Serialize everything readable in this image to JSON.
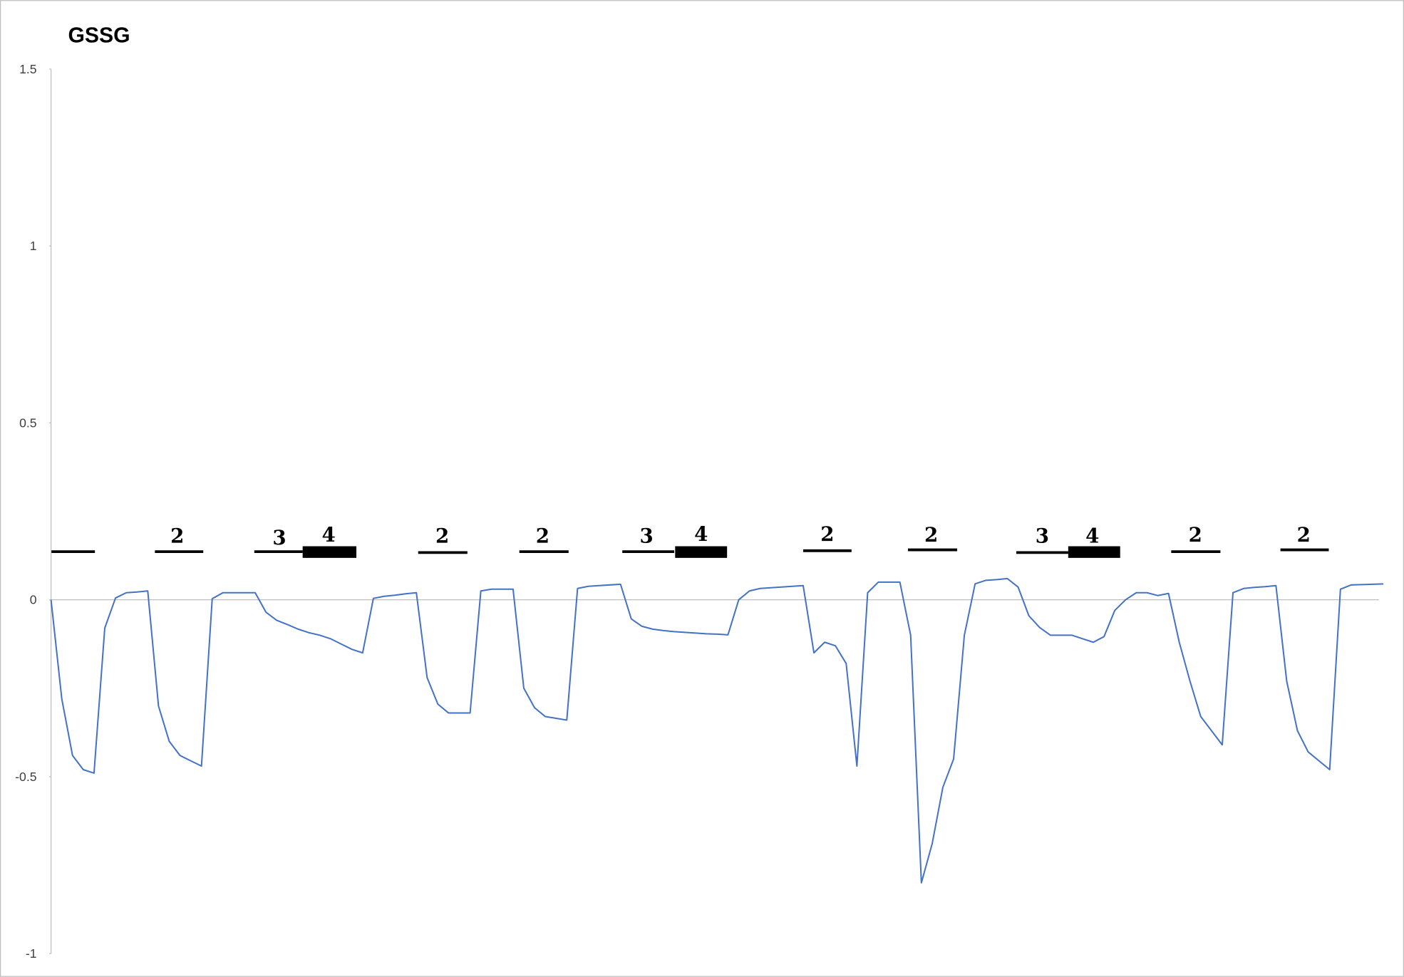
{
  "chart_data": {
    "type": "line",
    "title": "GSSG",
    "ylim": [
      -1,
      1.5
    ],
    "yticks": [
      -1,
      -0.5,
      0,
      0.5,
      1,
      1.5
    ],
    "grid": false,
    "series": [
      {
        "color": "#4472c4",
        "values": [
          0,
          -0.28,
          -0.44,
          -0.48,
          -0.49,
          -0.08,
          0.005,
          0.02,
          0.022,
          0.025,
          -0.3,
          -0.4,
          -0.44,
          -0.455,
          -0.47,
          0.003,
          0.02,
          0.02,
          0.02,
          0.02,
          -0.035,
          -0.058,
          -0.07,
          -0.083,
          -0.093,
          -0.1,
          -0.11,
          -0.125,
          -0.14,
          -0.15,
          0.004,
          0.01,
          0.013,
          0.017,
          0.02,
          -0.22,
          -0.295,
          -0.32,
          -0.32,
          -0.32,
          0.025,
          0.03,
          0.03,
          0.03,
          -0.25,
          -0.305,
          -0.33,
          -0.335,
          -0.34,
          0.032,
          0.038,
          0.04,
          0.042,
          0.044,
          -0.054,
          -0.075,
          -0.083,
          -0.087,
          -0.09,
          -0.092,
          -0.094,
          -0.096,
          -0.097,
          -0.099,
          0,
          0.025,
          0.032,
          0.034,
          0.036,
          0.038,
          0.04,
          -0.15,
          -0.12,
          -0.13,
          -0.18,
          -0.47,
          0.02,
          0.05,
          0.05,
          0.05,
          -0.1,
          -0.8,
          -0.69,
          -0.53,
          -0.45,
          -0.1,
          0.045,
          0.055,
          0.057,
          0.06,
          0.036,
          -0.045,
          -0.078,
          -0.1,
          -0.1,
          -0.1,
          -0.11,
          -0.12,
          -0.104,
          -0.03,
          0,
          0.02,
          0.02,
          0.012,
          0.018,
          -0.12,
          -0.23,
          -0.33,
          -0.37,
          -0.41,
          0.02,
          0.032,
          0.035,
          0.037,
          0.04,
          -0.23,
          -0.37,
          -0.43,
          -0.455,
          -0.48,
          0.03,
          0.042,
          0.043,
          0.044,
          0.045
        ]
      }
    ],
    "annotations": [
      "2",
      "3",
      "4",
      "2",
      "2",
      "3",
      "4",
      "2",
      "2",
      "3",
      "4",
      "2",
      "2"
    ]
  }
}
